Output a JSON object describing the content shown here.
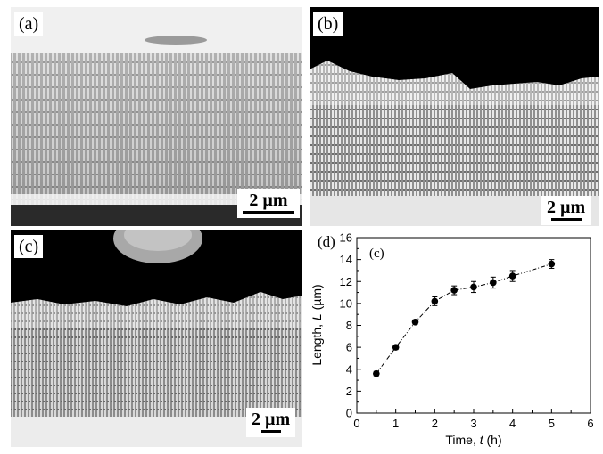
{
  "panels": [
    {
      "label": "(a)",
      "scale_bar": "2 µm"
    },
    {
      "label": "(b)",
      "scale_bar": "2 µm"
    },
    {
      "label": "(c)",
      "scale_bar": "2 µm"
    },
    {
      "label": "(d)"
    }
  ],
  "chart_data": {
    "type": "line",
    "panel_label": "(d)",
    "annotation": "(c)",
    "xlabel_prefix": "Time, ",
    "xlabel_var": "t",
    "xlabel_unit": " (h)",
    "ylabel_prefix": "Length, ",
    "ylabel_var": "L",
    "ylabel_unit": " (µm)",
    "xlim": [
      0,
      6
    ],
    "ylim": [
      0,
      16
    ],
    "x_ticks": [
      0,
      1,
      2,
      3,
      4,
      5,
      6
    ],
    "y_ticks": [
      0,
      2,
      4,
      6,
      8,
      10,
      12,
      14,
      16
    ],
    "grid": false,
    "series": [
      {
        "x": [
          0.5,
          1,
          1.5,
          2,
          2.5,
          3,
          3.5,
          4,
          5
        ],
        "y": [
          3.6,
          6.0,
          8.3,
          10.2,
          11.2,
          11.5,
          11.9,
          12.5,
          13.6
        ],
        "error": [
          0.2,
          0.2,
          0.2,
          0.4,
          0.4,
          0.5,
          0.5,
          0.5,
          0.4
        ]
      }
    ]
  }
}
